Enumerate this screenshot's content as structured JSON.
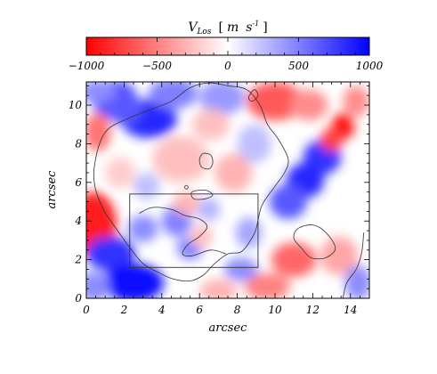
{
  "chart_data": {
    "type": "heatmap",
    "colorbar": {
      "label": "V",
      "label_sub": "Los",
      "unit_open": "[",
      "unit_m": "m",
      "unit_s": "s",
      "unit_exp": "-1",
      "unit_close": "]",
      "min": -1000,
      "max": 1000,
      "ticks": [
        -1000,
        -500,
        0,
        500,
        1000
      ],
      "tick_labels": [
        "−1000",
        "−500",
        "0",
        "500",
        "1000"
      ],
      "colors": {
        "negative": "#ff0000",
        "zero": "#ffffff",
        "positive": "#0000ff"
      }
    },
    "xlabel": "arcsec",
    "ylabel": "arcsec",
    "xlim": [
      0,
      15
    ],
    "ylim": [
      0,
      11.2
    ],
    "xticks": [
      0,
      2,
      4,
      6,
      8,
      10,
      12,
      14
    ],
    "yticks": [
      0,
      2,
      4,
      6,
      8,
      10
    ],
    "field_features": [
      {
        "x": 1.5,
        "y": 10.3,
        "v": 700,
        "rx": 1.2,
        "ry": 1.0
      },
      {
        "x": 0.6,
        "y": 10.7,
        "v": 450,
        "rx": 1.0,
        "ry": 0.6
      },
      {
        "x": 3.3,
        "y": 9.3,
        "v": 850,
        "rx": 1.5,
        "ry": 1.0
      },
      {
        "x": 2.0,
        "y": 9.8,
        "v": 650,
        "rx": 1.0,
        "ry": 0.8
      },
      {
        "x": 4.6,
        "y": 10.6,
        "v": 500,
        "rx": 1.3,
        "ry": 0.8
      },
      {
        "x": 7.2,
        "y": 10.4,
        "v": 400,
        "rx": 1.2,
        "ry": 0.9
      },
      {
        "x": 0.4,
        "y": 3.8,
        "v": -900,
        "rx": 1.2,
        "ry": 1.7
      },
      {
        "x": 0.6,
        "y": 8.6,
        "v": -550,
        "rx": 0.7,
        "ry": 1.0
      },
      {
        "x": 1.3,
        "y": 2.3,
        "v": 800,
        "rx": 1.3,
        "ry": 0.9
      },
      {
        "x": 2.5,
        "y": 0.8,
        "v": 950,
        "rx": 1.6,
        "ry": 1.0
      },
      {
        "x": 0.4,
        "y": 0.6,
        "v": 450,
        "rx": 0.8,
        "ry": 0.8
      },
      {
        "x": 12.5,
        "y": 7.3,
        "v": 800,
        "rx": 1.0,
        "ry": 0.9
      },
      {
        "x": 11.6,
        "y": 6.1,
        "v": 850,
        "rx": 1.0,
        "ry": 0.9
      },
      {
        "x": 10.7,
        "y": 5.0,
        "v": 650,
        "rx": 1.0,
        "ry": 0.9
      },
      {
        "x": 13.6,
        "y": 8.9,
        "v": -950,
        "rx": 0.6,
        "ry": 0.7
      },
      {
        "x": 13.0,
        "y": 8.2,
        "v": -750,
        "rx": 0.6,
        "ry": 0.6
      },
      {
        "x": 10.0,
        "y": 10.2,
        "v": -650,
        "rx": 1.5,
        "ry": 1.0
      },
      {
        "x": 11.8,
        "y": 10.0,
        "v": -450,
        "rx": 1.0,
        "ry": 0.8
      },
      {
        "x": 14.3,
        "y": 10.2,
        "v": -450,
        "rx": 0.7,
        "ry": 0.8
      },
      {
        "x": 11.0,
        "y": 2.0,
        "v": -600,
        "rx": 1.2,
        "ry": 0.9
      },
      {
        "x": 9.6,
        "y": 0.6,
        "v": -500,
        "rx": 1.2,
        "ry": 0.7
      },
      {
        "x": 13.4,
        "y": 2.2,
        "v": -350,
        "rx": 1.0,
        "ry": 1.0
      },
      {
        "x": 14.4,
        "y": 0.8,
        "v": 450,
        "rx": 0.7,
        "ry": 0.9
      },
      {
        "x": 8.2,
        "y": 1.5,
        "v": 450,
        "rx": 0.9,
        "ry": 0.6
      },
      {
        "x": 4.8,
        "y": 4.0,
        "v": 500,
        "rx": 0.8,
        "ry": 0.8
      },
      {
        "x": 3.0,
        "y": 3.6,
        "v": 450,
        "rx": 0.8,
        "ry": 0.7
      },
      {
        "x": 5.5,
        "y": 2.6,
        "v": 500,
        "rx": 0.7,
        "ry": 0.6
      },
      {
        "x": 8.6,
        "y": 3.4,
        "v": 350,
        "rx": 0.7,
        "ry": 0.8
      },
      {
        "x": 6.1,
        "y": 3.2,
        "v": -250,
        "rx": 0.6,
        "ry": 0.6
      },
      {
        "x": 5.0,
        "y": 7.2,
        "v": -250,
        "rx": 1.5,
        "ry": 1.2
      },
      {
        "x": 7.8,
        "y": 6.5,
        "v": -300,
        "rx": 1.0,
        "ry": 1.0
      },
      {
        "x": 6.6,
        "y": 9.0,
        "v": -250,
        "rx": 1.0,
        "ry": 0.8
      },
      {
        "x": 8.9,
        "y": 8.0,
        "v": 250,
        "rx": 0.9,
        "ry": 1.0
      },
      {
        "x": 5.3,
        "y": 4.9,
        "v": -300,
        "rx": 0.7,
        "ry": 0.6
      },
      {
        "x": 3.2,
        "y": 5.8,
        "v": 250,
        "rx": 0.7,
        "ry": 0.7
      },
      {
        "x": 7.0,
        "y": 0.4,
        "v": -300,
        "rx": 1.0,
        "ry": 0.6
      },
      {
        "x": 6.5,
        "y": 4.6,
        "v": 300,
        "rx": 0.6,
        "ry": 0.6
      },
      {
        "x": 1.8,
        "y": 6.5,
        "v": -200,
        "rx": 0.8,
        "ry": 0.8
      }
    ],
    "contours": [
      {
        "name": "outer",
        "closed": true,
        "points": [
          [
            0.5,
            5.6
          ],
          [
            0.4,
            6.6
          ],
          [
            0.7,
            8.0
          ],
          [
            1.2,
            8.8
          ],
          [
            2.2,
            9.3
          ],
          [
            3.2,
            9.7
          ],
          [
            4.5,
            10.2
          ],
          [
            5.5,
            10.9
          ],
          [
            6.5,
            11.15
          ],
          [
            7.5,
            11.0
          ],
          [
            8.5,
            10.8
          ],
          [
            9.2,
            10.0
          ],
          [
            9.6,
            9.0
          ],
          [
            10.2,
            8.2
          ],
          [
            10.7,
            7.2
          ],
          [
            10.5,
            6.5
          ],
          [
            10.0,
            5.8
          ],
          [
            9.3,
            4.8
          ],
          [
            9.0,
            3.6
          ],
          [
            8.7,
            3.0
          ],
          [
            8.2,
            2.4
          ],
          [
            7.5,
            2.3
          ],
          [
            6.8,
            1.8
          ],
          [
            6.2,
            1.2
          ],
          [
            5.5,
            0.9
          ],
          [
            4.6,
            1.0
          ],
          [
            3.7,
            1.4
          ],
          [
            3.0,
            1.8
          ],
          [
            2.4,
            2.5
          ],
          [
            1.8,
            3.3
          ],
          [
            1.3,
            4.0
          ],
          [
            0.9,
            4.6
          ]
        ]
      },
      {
        "name": "inner",
        "closed": false,
        "points": [
          [
            2.8,
            4.4
          ],
          [
            3.5,
            4.7
          ],
          [
            4.5,
            4.6
          ],
          [
            5.2,
            4.3
          ],
          [
            6.0,
            4.1
          ],
          [
            6.4,
            3.7
          ],
          [
            6.0,
            3.2
          ],
          [
            5.4,
            2.8
          ],
          [
            5.1,
            2.3
          ],
          [
            5.6,
            2.2
          ],
          [
            6.6,
            2.5
          ],
          [
            7.4,
            2.3
          ]
        ]
      },
      {
        "name": "small-a",
        "closed": true,
        "points": [
          [
            6.2,
            7.5
          ],
          [
            6.6,
            7.4
          ],
          [
            6.7,
            7.0
          ],
          [
            6.5,
            6.7
          ],
          [
            6.1,
            6.8
          ],
          [
            6.0,
            7.2
          ]
        ]
      },
      {
        "name": "small-b",
        "closed": true,
        "points": [
          [
            5.6,
            5.5
          ],
          [
            6.3,
            5.6
          ],
          [
            6.7,
            5.35
          ],
          [
            6.3,
            5.15
          ],
          [
            5.7,
            5.15
          ]
        ]
      },
      {
        "name": "small-c",
        "closed": true,
        "points": [
          [
            8.6,
            10.4
          ],
          [
            8.9,
            10.8
          ],
          [
            9.1,
            10.5
          ],
          [
            8.8,
            10.2
          ]
        ]
      },
      {
        "name": "small-d",
        "closed": true,
        "points": [
          [
            5.2,
            5.75
          ],
          [
            5.3,
            5.85
          ],
          [
            5.4,
            5.75
          ],
          [
            5.3,
            5.65
          ]
        ]
      },
      {
        "name": "right-lobe",
        "closed": true,
        "points": [
          [
            11.2,
            3.6
          ],
          [
            12.0,
            3.8
          ],
          [
            12.7,
            3.4
          ],
          [
            13.2,
            2.6
          ],
          [
            12.7,
            2.1
          ],
          [
            11.9,
            2.1
          ],
          [
            11.4,
            2.6
          ],
          [
            11.0,
            3.1
          ]
        ]
      },
      {
        "name": "right-edge",
        "closed": false,
        "points": [
          [
            13.6,
            0.0
          ],
          [
            13.8,
            0.8
          ],
          [
            14.3,
            1.5
          ],
          [
            14.6,
            2.4
          ],
          [
            14.7,
            3.4
          ]
        ]
      }
    ],
    "box": {
      "x0": 2.3,
      "x1": 9.1,
      "y0": 1.6,
      "y1": 5.4
    }
  }
}
